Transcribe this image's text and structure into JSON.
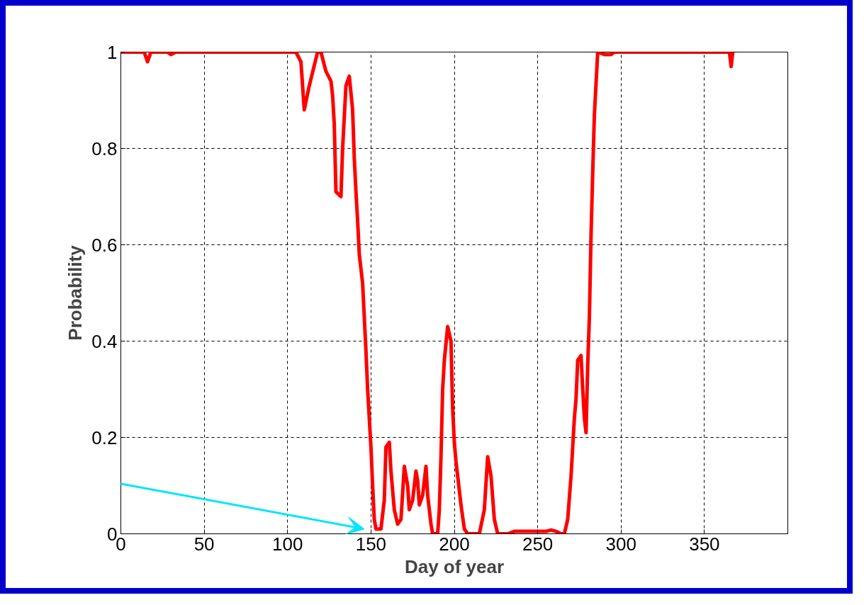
{
  "chart_data": {
    "type": "line",
    "xlabel": "Day of year",
    "ylabel": "Probability",
    "xlim": [
      0,
      400
    ],
    "ylim": [
      0,
      1
    ],
    "xticks": [
      0,
      50,
      100,
      150,
      200,
      250,
      300,
      350
    ],
    "yticks": [
      0,
      0.2,
      0.4,
      0.6,
      0.8,
      1
    ],
    "grid": true,
    "line_style": "solid",
    "marker": "none",
    "series": [
      {
        "color": "#ff0000",
        "x": [
          0,
          14,
          16,
          18,
          28,
          30,
          33,
          105,
          108,
          110,
          113,
          118,
          120,
          123,
          126,
          127,
          128,
          129,
          132,
          133,
          135,
          137,
          139,
          140,
          141,
          142,
          143,
          144,
          145,
          146,
          147,
          148,
          149,
          150,
          151,
          152,
          153,
          156,
          158,
          159,
          161,
          162,
          164,
          166,
          168,
          170,
          172,
          173,
          175,
          177,
          178,
          179,
          181,
          183,
          184,
          186,
          187,
          190,
          191,
          192,
          193,
          194,
          196,
          198,
          199,
          200,
          201,
          202,
          204,
          206,
          208,
          215,
          218,
          220,
          222,
          224,
          226,
          232,
          236,
          247,
          255,
          258,
          261,
          264,
          266,
          268,
          270,
          272,
          273,
          274,
          276,
          277,
          278,
          279,
          280,
          281,
          282,
          283,
          284,
          286,
          290,
          294,
          296,
          365,
          366,
          367
        ],
        "values": [
          1,
          1,
          0.98,
          1,
          1,
          0.995,
          1,
          1,
          0.98,
          0.88,
          0.93,
          1,
          1,
          0.96,
          0.94,
          0.91,
          0.85,
          0.71,
          0.7,
          0.8,
          0.93,
          0.95,
          0.88,
          0.78,
          0.71,
          0.65,
          0.58,
          0.55,
          0.52,
          0.45,
          0.38,
          0.3,
          0.24,
          0.18,
          0.1,
          0.03,
          0.01,
          0.01,
          0.07,
          0.18,
          0.19,
          0.13,
          0.05,
          0.02,
          0.03,
          0.14,
          0.1,
          0.05,
          0.07,
          0.13,
          0.11,
          0.06,
          0.08,
          0.14,
          0.08,
          0.02,
          0,
          0,
          0.05,
          0.16,
          0.3,
          0.36,
          0.43,
          0.4,
          0.26,
          0.19,
          0.15,
          0.12,
          0.06,
          0.01,
          0,
          0,
          0.05,
          0.16,
          0.12,
          0.03,
          0,
          0,
          0.005,
          0.005,
          0.005,
          0.008,
          0.005,
          0,
          0,
          0.03,
          0.12,
          0.24,
          0.28,
          0.36,
          0.37,
          0.3,
          0.24,
          0.21,
          0.35,
          0.45,
          0.62,
          0.75,
          0.87,
          1,
          0.995,
          0.995,
          1,
          1,
          0.97,
          1
        ]
      }
    ]
  }
}
